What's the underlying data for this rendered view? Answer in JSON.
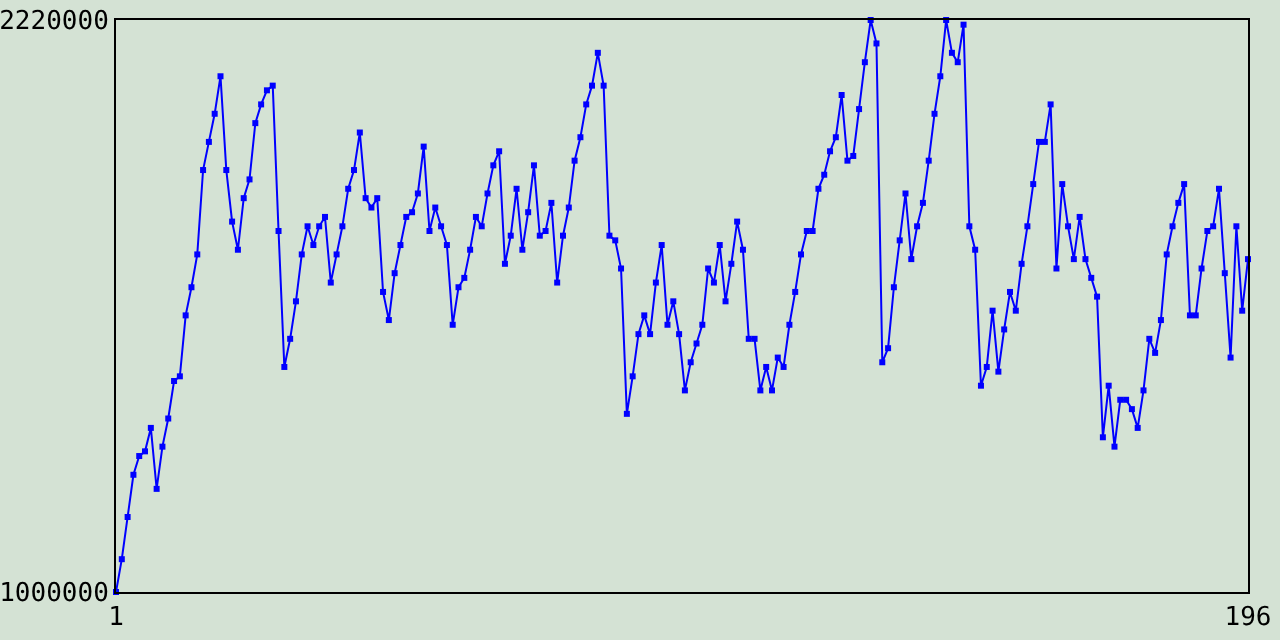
{
  "chart_data": {
    "type": "line",
    "x": [
      1,
      2,
      3,
      4,
      5,
      6,
      7,
      8,
      9,
      10,
      11,
      12,
      13,
      14,
      15,
      16,
      17,
      18,
      19,
      20,
      21,
      22,
      23,
      24,
      25,
      26,
      27,
      28,
      29,
      30,
      31,
      32,
      33,
      34,
      35,
      36,
      37,
      38,
      39,
      40,
      41,
      42,
      43,
      44,
      45,
      46,
      47,
      48,
      49,
      50,
      51,
      52,
      53,
      54,
      55,
      56,
      57,
      58,
      59,
      60,
      61,
      62,
      63,
      64,
      65,
      66,
      67,
      68,
      69,
      70,
      71,
      72,
      73,
      74,
      75,
      76,
      77,
      78,
      79,
      80,
      81,
      82,
      83,
      84,
      85,
      86,
      87,
      88,
      89,
      90,
      91,
      92,
      93,
      94,
      95,
      96,
      97,
      98,
      99,
      100,
      101,
      102,
      103,
      104,
      105,
      106,
      107,
      108,
      109,
      110,
      111,
      112,
      113,
      114,
      115,
      116,
      117,
      118,
      119,
      120,
      121,
      122,
      123,
      124,
      125,
      126,
      127,
      128,
      129,
      130,
      131,
      132,
      133,
      134,
      135,
      136,
      137,
      138,
      139,
      140,
      141,
      142,
      143,
      144,
      145,
      146,
      147,
      148,
      149,
      150,
      151,
      152,
      153,
      154,
      155,
      156,
      157,
      158,
      159,
      160,
      161,
      162,
      163,
      164,
      165,
      166,
      167,
      168,
      169,
      170,
      171,
      172,
      173,
      174,
      175,
      176,
      177,
      178,
      179,
      180,
      181,
      182,
      183,
      184,
      185,
      186,
      187,
      188,
      189,
      190,
      191,
      192,
      193,
      194,
      195,
      196
    ],
    "series": [
      {
        "color": "#0000ff",
        "values": [
          1000000,
          1070000,
          1160000,
          1250000,
          1290000,
          1300000,
          1350000,
          1220000,
          1310000,
          1370000,
          1450000,
          1460000,
          1590000,
          1650000,
          1720000,
          1900000,
          1960000,
          2020000,
          2100000,
          1900000,
          1790000,
          1730000,
          1840000,
          1880000,
          2000000,
          2040000,
          2070000,
          2080000,
          1770000,
          1480000,
          1540000,
          1620000,
          1720000,
          1780000,
          1740000,
          1780000,
          1800000,
          1660000,
          1720000,
          1780000,
          1860000,
          1900000,
          1980000,
          1840000,
          1820000,
          1840000,
          1640000,
          1580000,
          1680000,
          1740000,
          1800000,
          1810000,
          1850000,
          1950000,
          1770000,
          1820000,
          1780000,
          1740000,
          1570000,
          1650000,
          1670000,
          1730000,
          1800000,
          1780000,
          1850000,
          1910000,
          1940000,
          1700000,
          1760000,
          1860000,
          1730000,
          1810000,
          1910000,
          1760000,
          1770000,
          1830000,
          1660000,
          1760000,
          1820000,
          1920000,
          1970000,
          2040000,
          2080000,
          2150000,
          2080000,
          1760000,
          1750000,
          1690000,
          1380000,
          1460000,
          1550000,
          1590000,
          1550000,
          1660000,
          1740000,
          1570000,
          1620000,
          1550000,
          1430000,
          1490000,
          1530000,
          1570000,
          1690000,
          1660000,
          1740000,
          1620000,
          1700000,
          1790000,
          1730000,
          1540000,
          1540000,
          1430000,
          1480000,
          1430000,
          1500000,
          1480000,
          1570000,
          1640000,
          1720000,
          1770000,
          1770000,
          1860000,
          1890000,
          1940000,
          1970000,
          2060000,
          1920000,
          1930000,
          2030000,
          2130000,
          2220000,
          2170000,
          1490000,
          1520000,
          1650000,
          1750000,
          1850000,
          1710000,
          1780000,
          1830000,
          1920000,
          2020000,
          2100000,
          2220000,
          2150000,
          2130000,
          2210000,
          1780000,
          1730000,
          1440000,
          1480000,
          1600000,
          1470000,
          1560000,
          1640000,
          1600000,
          1700000,
          1780000,
          1870000,
          1960000,
          1960000,
          2040000,
          1690000,
          1870000,
          1780000,
          1710000,
          1800000,
          1710000,
          1670000,
          1630000,
          1330000,
          1440000,
          1310000,
          1410000,
          1410000,
          1390000,
          1350000,
          1430000,
          1540000,
          1510000,
          1580000,
          1720000,
          1780000,
          1830000,
          1870000,
          1590000,
          1590000,
          1690000,
          1770000,
          1780000,
          1860000,
          1680000,
          1500000,
          1780000,
          1600000,
          1710000
        ]
      }
    ],
    "xlim": [
      1,
      196
    ],
    "xticks": [
      1,
      196
    ],
    "ylim": [
      1000000,
      2220000
    ],
    "yticks": [
      1000000,
      2220000
    ],
    "marker": "square",
    "line_style": "solid"
  }
}
